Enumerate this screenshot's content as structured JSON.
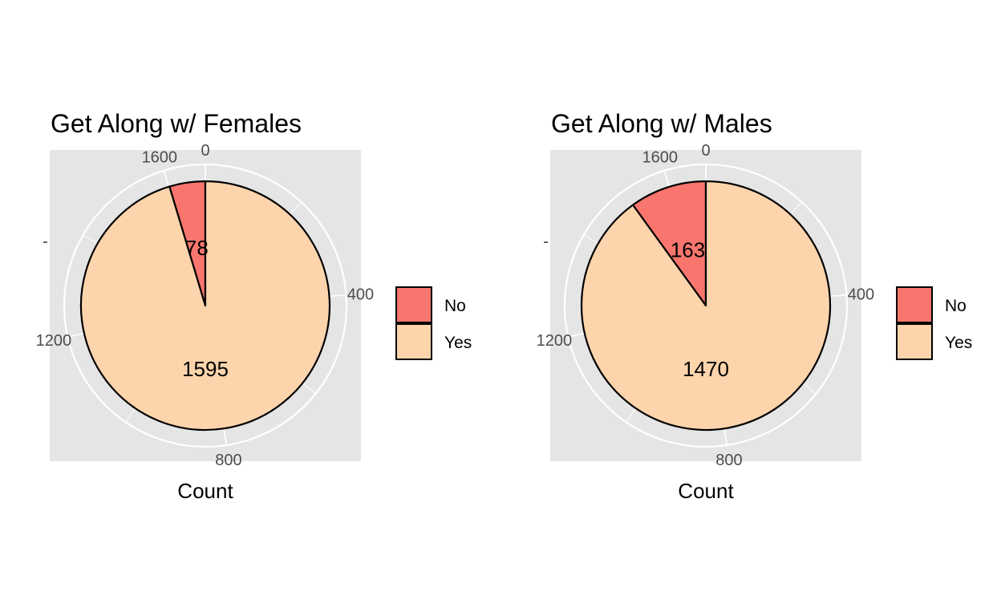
{
  "chart_data": [
    {
      "type": "pie",
      "title": "Get Along w/ Females",
      "xlabel": "Count",
      "categories": [
        "No",
        "Yes"
      ],
      "values": [
        78,
        1595
      ],
      "colors": [
        "#F8766D",
        "#FDD4AC"
      ],
      "slice_labels": [
        "78",
        "1595"
      ],
      "ticks": [
        0,
        400,
        800,
        1200,
        1600
      ],
      "tick_labels": [
        "0",
        "400",
        "800",
        "1200",
        "1600"
      ],
      "legend": {
        "position": "right",
        "entries": [
          "No",
          "Yes"
        ]
      },
      "panel_background": "#E5E5E5",
      "grid": true
    },
    {
      "type": "pie",
      "title": "Get Along w/ Males",
      "xlabel": "Count",
      "categories": [
        "No",
        "Yes"
      ],
      "values": [
        163,
        1470
      ],
      "colors": [
        "#F8766D",
        "#FDD4AC"
      ],
      "slice_labels": [
        "163",
        "1470"
      ],
      "ticks": [
        0,
        400,
        800,
        1200,
        1600
      ],
      "tick_labels": [
        "0",
        "400",
        "800",
        "1200",
        "1600"
      ],
      "legend": {
        "position": "right",
        "entries": [
          "No",
          "Yes"
        ]
      },
      "panel_background": "#E5E5E5",
      "grid": true
    }
  ]
}
